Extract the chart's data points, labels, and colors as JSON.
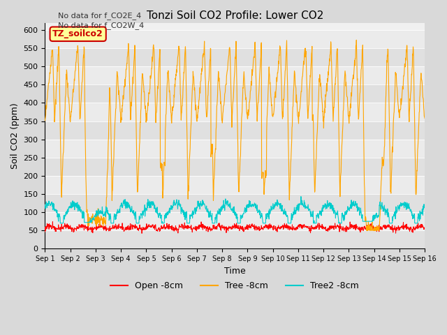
{
  "title": "Tonzi Soil CO2 Profile: Lower CO2",
  "xlabel": "Time",
  "ylabel": "Soil CO2 (ppm)",
  "ylim": [
    0,
    620
  ],
  "yticks": [
    0,
    50,
    100,
    150,
    200,
    250,
    300,
    350,
    400,
    450,
    500,
    550,
    600
  ],
  "legend_labels": [
    "Open -8cm",
    "Tree -8cm",
    "Tree2 -8cm"
  ],
  "legend_colors": [
    "#ff0000",
    "#ffa500",
    "#00cccc"
  ],
  "annotation_lines": [
    "No data for f_CO2E_4",
    "No data for f_CO2W_4"
  ],
  "box_label": "TZ_soilco2",
  "box_color": "#cc0000",
  "box_bg": "#ffff99",
  "n_days": 15,
  "points_per_day": 96,
  "fig_bg": "#d9d9d9",
  "band_colors": [
    "#e0e0e0",
    "#ebebeb"
  ]
}
